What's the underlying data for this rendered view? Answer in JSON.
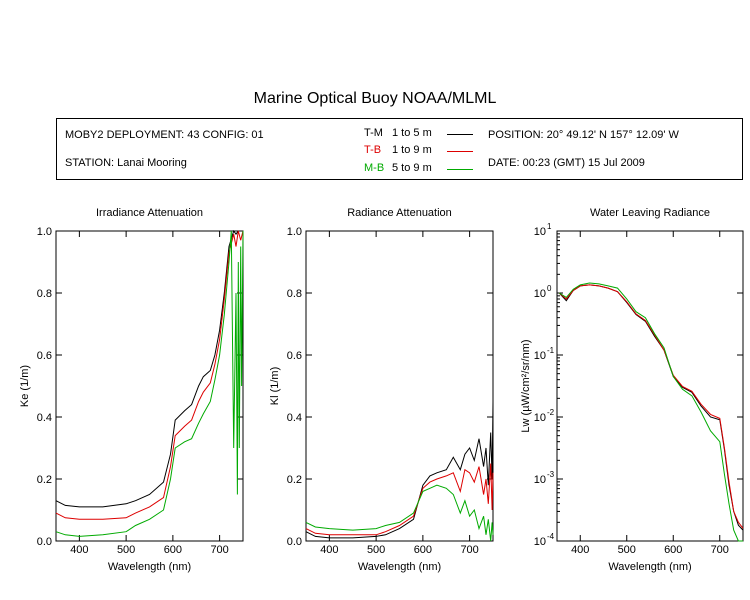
{
  "title": "Marine Optical Buoy NOAA/MLML",
  "info": {
    "deployment": "MOBY2 DEPLOYMENT: 43 CONFIG: 01",
    "station": "STATION: Lanai Mooring",
    "position": "POSITION: 20° 49.12' N   157° 12.09' W",
    "date": "DATE: 00:23 (GMT) 15 Jul 2009"
  },
  "legend": [
    {
      "code": "T-M",
      "range": "1 to 5  m",
      "color": "#000000"
    },
    {
      "code": "T-B",
      "range": "1 to 9  m",
      "color": "#dd0000"
    },
    {
      "code": "M-B",
      "range": "5 to 9  m",
      "color": "#00aa00"
    }
  ],
  "colors": {
    "T-M": "#000000",
    "T-B": "#dd0000",
    "M-B": "#00aa00"
  },
  "chart_data": [
    {
      "type": "line",
      "title": "Irradiance Attenuation",
      "xlabel": "Wavelength (nm)",
      "ylabel": "Ke  (1/m)",
      "xlim": [
        350,
        750
      ],
      "ylim": [
        0.0,
        1.0
      ],
      "xticks": [
        400,
        500,
        600,
        700
      ],
      "yticks": [
        "0.0",
        "0.2",
        "0.4",
        "0.6",
        "0.8",
        "1.0"
      ],
      "series": [
        {
          "name": "T-M",
          "x": [
            350,
            370,
            400,
            450,
            500,
            520,
            550,
            580,
            595,
            605,
            625,
            640,
            655,
            665,
            680,
            690,
            700,
            710,
            720,
            730,
            735,
            740,
            745,
            750
          ],
          "y": [
            0.13,
            0.115,
            0.11,
            0.11,
            0.12,
            0.13,
            0.15,
            0.19,
            0.28,
            0.39,
            0.42,
            0.44,
            0.5,
            0.53,
            0.55,
            0.6,
            0.68,
            0.8,
            0.95,
            1.0,
            0.99,
            1.0,
            1.0,
            1.0
          ]
        },
        {
          "name": "T-B",
          "x": [
            350,
            370,
            400,
            450,
            500,
            520,
            550,
            580,
            595,
            605,
            625,
            640,
            655,
            665,
            680,
            690,
            700,
            710,
            720,
            730,
            735,
            740,
            745,
            750
          ],
          "y": [
            0.09,
            0.075,
            0.07,
            0.07,
            0.075,
            0.09,
            0.11,
            0.14,
            0.24,
            0.34,
            0.37,
            0.39,
            0.45,
            0.48,
            0.51,
            0.57,
            0.65,
            0.78,
            0.93,
            0.99,
            0.95,
            1.0,
            0.97,
            1.0
          ]
        },
        {
          "name": "M-B",
          "x": [
            350,
            370,
            400,
            450,
            500,
            520,
            550,
            580,
            595,
            605,
            625,
            640,
            655,
            665,
            680,
            690,
            700,
            710,
            720,
            725,
            730,
            735,
            738,
            740,
            742,
            745,
            747,
            750
          ],
          "y": [
            0.03,
            0.02,
            0.015,
            0.02,
            0.03,
            0.05,
            0.07,
            0.1,
            0.2,
            0.3,
            0.32,
            0.33,
            0.38,
            0.41,
            0.45,
            0.52,
            0.6,
            0.73,
            0.9,
            1.0,
            0.3,
            0.8,
            0.15,
            0.9,
            0.3,
            0.95,
            0.5,
            1.0
          ]
        }
      ]
    },
    {
      "type": "line",
      "title": "Radiance Attenuation",
      "xlabel": "Wavelength (nm)",
      "ylabel": "Kl  (1/m)",
      "xlim": [
        350,
        750
      ],
      "ylim": [
        0.0,
        1.0
      ],
      "xticks": [
        400,
        500,
        600,
        700
      ],
      "yticks": [
        "0.0",
        "0.2",
        "0.4",
        "0.6",
        "0.8",
        "1.0"
      ],
      "series": [
        {
          "name": "T-M",
          "x": [
            350,
            370,
            400,
            450,
            500,
            520,
            550,
            580,
            600,
            615,
            630,
            650,
            665,
            680,
            690,
            700,
            710,
            720,
            730,
            735,
            740,
            745,
            748,
            750
          ],
          "y": [
            0.03,
            0.015,
            0.01,
            0.01,
            0.015,
            0.02,
            0.04,
            0.07,
            0.18,
            0.21,
            0.22,
            0.23,
            0.27,
            0.23,
            0.28,
            0.3,
            0.26,
            0.33,
            0.24,
            0.3,
            0.18,
            0.35,
            0.2,
            0.45
          ]
        },
        {
          "name": "T-B",
          "x": [
            350,
            370,
            400,
            450,
            500,
            520,
            550,
            580,
            600,
            615,
            630,
            650,
            665,
            680,
            690,
            700,
            710,
            720,
            730,
            735,
            740,
            745,
            748,
            750
          ],
          "y": [
            0.04,
            0.025,
            0.02,
            0.02,
            0.02,
            0.03,
            0.05,
            0.08,
            0.17,
            0.19,
            0.2,
            0.21,
            0.22,
            0.16,
            0.23,
            0.22,
            0.19,
            0.24,
            0.15,
            0.2,
            0.12,
            0.25,
            0.1,
            0.22
          ]
        },
        {
          "name": "M-B",
          "x": [
            350,
            370,
            400,
            450,
            500,
            520,
            550,
            580,
            600,
            615,
            630,
            650,
            665,
            680,
            690,
            700,
            710,
            720,
            730,
            735,
            740,
            745,
            748,
            750
          ],
          "y": [
            0.06,
            0.045,
            0.04,
            0.035,
            0.04,
            0.05,
            0.06,
            0.09,
            0.16,
            0.17,
            0.18,
            0.17,
            0.15,
            0.09,
            0.13,
            0.08,
            0.1,
            0.04,
            0.08,
            0.02,
            0.07,
            0.0,
            0.06,
            0.02
          ]
        }
      ]
    },
    {
      "type": "line",
      "title": "Water Leaving Radiance",
      "xlabel": "Wavelength (nm)",
      "ylabel": "Lw  (µW/cm²/sr/nm)",
      "yscale": "log",
      "xlim": [
        350,
        750
      ],
      "ylim": [
        0.0001,
        10
      ],
      "xticks": [
        400,
        500,
        600,
        700
      ],
      "yticks": [
        "10^-4",
        "10^-3",
        "10^-2",
        "10^-1",
        "10^0",
        "10^1"
      ],
      "series": [
        {
          "name": "T-M",
          "x": [
            355,
            370,
            385,
            400,
            420,
            440,
            460,
            480,
            500,
            520,
            540,
            560,
            580,
            600,
            620,
            640,
            660,
            680,
            700,
            710,
            720,
            730,
            740,
            750
          ],
          "y": [
            1.0,
            0.75,
            1.1,
            1.3,
            1.35,
            1.3,
            1.2,
            1.05,
            0.7,
            0.45,
            0.35,
            0.2,
            0.12,
            0.045,
            0.03,
            0.025,
            0.015,
            0.01,
            0.009,
            0.003,
            0.0008,
            0.0003,
            0.00018,
            0.00015
          ]
        },
        {
          "name": "T-B",
          "x": [
            355,
            370,
            385,
            400,
            420,
            440,
            460,
            480,
            500,
            520,
            540,
            560,
            580,
            600,
            620,
            640,
            660,
            680,
            700,
            710,
            720,
            730,
            740,
            750
          ],
          "y": [
            1.0,
            0.8,
            1.1,
            1.3,
            1.35,
            1.3,
            1.2,
            1.05,
            0.72,
            0.46,
            0.36,
            0.21,
            0.12,
            0.047,
            0.031,
            0.026,
            0.016,
            0.011,
            0.0095,
            0.0032,
            0.0009,
            0.0003,
            0.0002,
            0.00016
          ]
        },
        {
          "name": "M-B",
          "x": [
            355,
            370,
            385,
            400,
            420,
            440,
            460,
            480,
            500,
            520,
            540,
            560,
            580,
            600,
            620,
            640,
            660,
            680,
            700,
            710,
            720,
            730,
            740,
            750
          ],
          "y": [
            1.0,
            0.85,
            1.15,
            1.35,
            1.45,
            1.4,
            1.3,
            1.2,
            0.8,
            0.5,
            0.4,
            0.22,
            0.13,
            0.045,
            0.028,
            0.022,
            0.012,
            0.006,
            0.004,
            0.0012,
            0.0004,
            0.00015,
            0.0001,
            9e-05
          ]
        }
      ]
    }
  ]
}
